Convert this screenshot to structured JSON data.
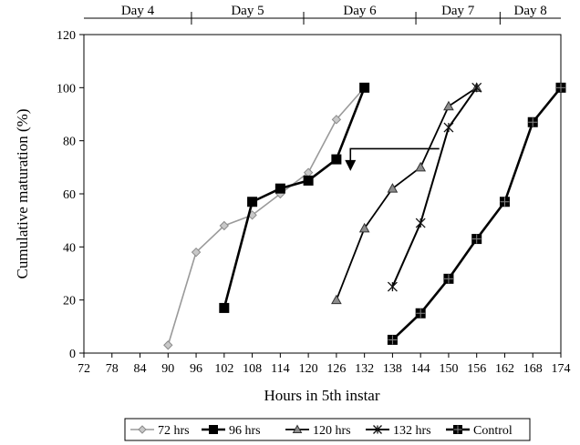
{
  "chart_data": {
    "type": "line",
    "xlabel": "Hours in 5th instar",
    "ylabel": "Cumulative maturation (%)",
    "xlim": [
      72,
      174
    ],
    "ylim": [
      0,
      120
    ],
    "x_ticks": [
      72,
      78,
      84,
      90,
      96,
      102,
      108,
      114,
      120,
      126,
      132,
      138,
      144,
      150,
      156,
      162,
      168,
      174
    ],
    "y_ticks": [
      0,
      20,
      40,
      60,
      80,
      100,
      120
    ],
    "grid": false,
    "legend_position": "bottom",
    "day_labels": [
      {
        "text": "Day 4",
        "from": 72,
        "to": 95
      },
      {
        "text": "Day 5",
        "from": 95,
        "to": 119
      },
      {
        "text": "Day 6",
        "from": 119,
        "to": 143
      },
      {
        "text": "Day 7",
        "from": 143,
        "to": 161
      },
      {
        "text": "Day 8",
        "from": 161,
        "to": 174
      }
    ],
    "day_dividers": [
      95,
      119,
      143,
      161
    ],
    "annotation_arrow": {
      "from": [
        148,
        77
      ],
      "corner": [
        129,
        77
      ],
      "to": [
        129,
        70
      ]
    },
    "series": [
      {
        "name": "72 hrs",
        "marker": "diamond",
        "color": "#8a8a8a",
        "x": [
          90,
          96,
          102,
          108,
          114,
          120,
          126,
          132
        ],
        "y": [
          3,
          38,
          48,
          52,
          60,
          68,
          88,
          100
        ]
      },
      {
        "name": "96 hrs",
        "marker": "square",
        "color": "#000000",
        "x": [
          102,
          108,
          114,
          120,
          126,
          132
        ],
        "y": [
          17,
          57,
          62,
          65,
          73,
          100
        ]
      },
      {
        "name": "120 hrs",
        "marker": "triangle",
        "color": "#444444",
        "x": [
          126,
          132,
          138,
          144,
          150,
          156
        ],
        "y": [
          20,
          47,
          62,
          70,
          93,
          100
        ]
      },
      {
        "name": "132 hrs",
        "marker": "star",
        "color": "#111111",
        "x": [
          138,
          144,
          150,
          156
        ],
        "y": [
          25,
          49,
          85,
          100
        ]
      },
      {
        "name": "Control",
        "marker": "square-cross",
        "color": "#000000",
        "x": [
          138,
          144,
          150,
          156,
          162,
          168,
          174
        ],
        "y": [
          5,
          15,
          28,
          43,
          57,
          87,
          100
        ]
      }
    ]
  }
}
